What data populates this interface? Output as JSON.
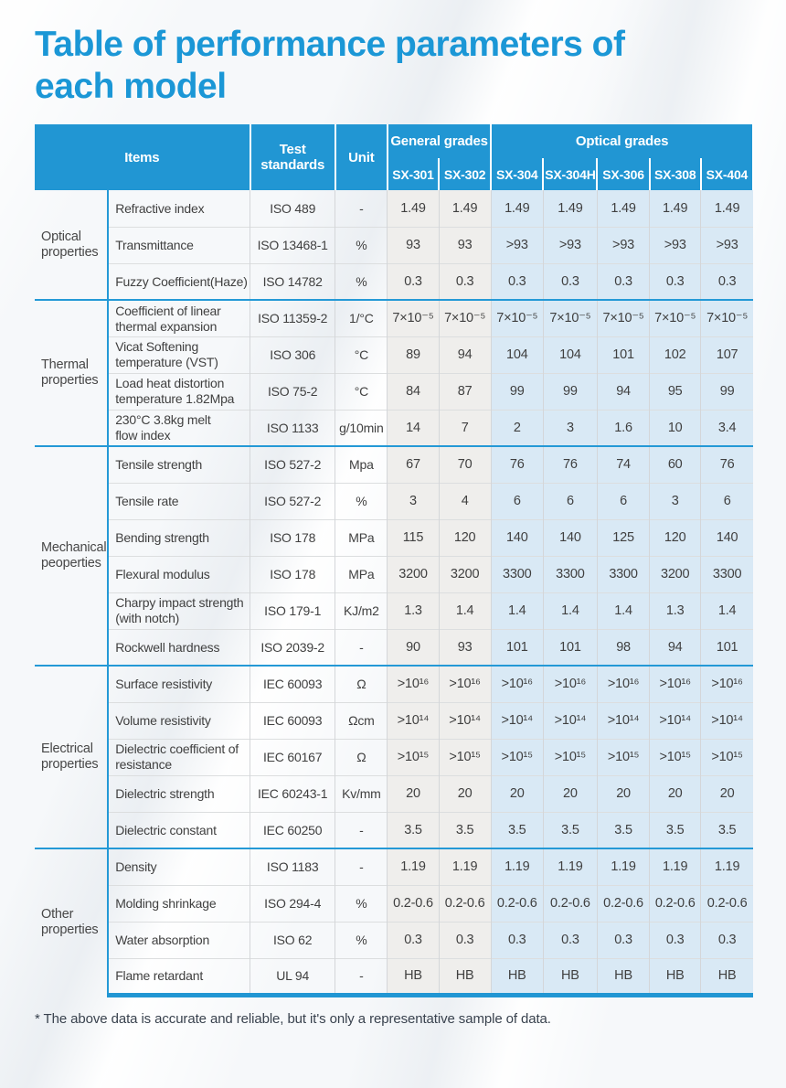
{
  "page": {
    "title": "Table of performance parameters of each model",
    "footnote": "* The above data is accurate and reliable, but it's only a representative sample of data."
  },
  "colors": {
    "header_blue": "#2196d3",
    "title_blue": "#1b97d6",
    "group_separator_blue": "#2499d6",
    "general_grades_bg": "#efeeec",
    "optical_grades_bg": "#d9e9f5",
    "body_text": "#404040"
  },
  "table": {
    "header": {
      "items": "Items",
      "test_standards": "Test\nstandards",
      "unit": "Unit",
      "general_grades": "General grades",
      "optical_grades": "Optical grades",
      "models": [
        "SX-301",
        "SX-302",
        "SX-304",
        "SX-304H",
        "SX-306",
        "SX-308",
        "SX-404"
      ]
    },
    "groups": [
      {
        "category": "Optical\nproperties",
        "rows": [
          {
            "item": "Refractive index",
            "standard": "ISO 489",
            "unit": "-",
            "values": [
              "1.49",
              "1.49",
              "1.49",
              "1.49",
              "1.49",
              "1.49",
              "1.49"
            ]
          },
          {
            "item": "Transmittance",
            "standard": "ISO 13468-1",
            "unit": "%",
            "values": [
              "93",
              "93",
              ">93",
              ">93",
              ">93",
              ">93",
              ">93"
            ]
          },
          {
            "item": "Fuzzy Coefficient(Haze)",
            "standard": "ISO 14782",
            "unit": "%",
            "values": [
              "0.3",
              "0.3",
              "0.3",
              "0.3",
              "0.3",
              "0.3",
              "0.3"
            ]
          }
        ]
      },
      {
        "category": "Thermal\nproperties",
        "rows": [
          {
            "item": "Coefficient of linear\nthermal expansion",
            "standard": "ISO 11359-2",
            "unit": "1/°C",
            "values": [
              "7×10⁻⁵",
              "7×10⁻⁵",
              "7×10⁻⁵",
              "7×10⁻⁵",
              "7×10⁻⁵",
              "7×10⁻⁵",
              "7×10⁻⁵"
            ]
          },
          {
            "item": "Vicat Softening\ntemperature (VST)",
            "standard": "ISO 306",
            "unit": "°C",
            "values": [
              "89",
              "94",
              "104",
              "104",
              "101",
              "102",
              "107"
            ]
          },
          {
            "item": "Load heat distortion\ntemperature 1.82Mpa",
            "standard": "ISO 75-2",
            "unit": "°C",
            "values": [
              "84",
              "87",
              "99",
              "99",
              "94",
              "95",
              "99"
            ]
          },
          {
            "item": "230°C 3.8kg melt\nflow index",
            "standard": "ISO 1133",
            "unit": "g/10min",
            "values": [
              "14",
              "7",
              "2",
              "3",
              "1.6",
              "10",
              "3.4"
            ]
          }
        ]
      },
      {
        "category": "Mechanical\npeoperties",
        "rows": [
          {
            "item": "Tensile strength",
            "standard": "ISO 527-2",
            "unit": "Mpa",
            "values": [
              "67",
              "70",
              "76",
              "76",
              "74",
              "60",
              "76"
            ]
          },
          {
            "item": "Tensile rate",
            "standard": "ISO 527-2",
            "unit": "%",
            "values": [
              "3",
              "4",
              "6",
              "6",
              "6",
              "3",
              "6"
            ]
          },
          {
            "item": "Bending strength",
            "standard": "ISO 178",
            "unit": "MPa",
            "values": [
              "115",
              "120",
              "140",
              "140",
              "125",
              "120",
              "140"
            ]
          },
          {
            "item": "Flexural modulus",
            "standard": "ISO 178",
            "unit": "MPa",
            "values": [
              "3200",
              "3200",
              "3300",
              "3300",
              "3300",
              "3200",
              "3300"
            ]
          },
          {
            "item": "Charpy impact strength\n(with notch)",
            "standard": "ISO 179-1",
            "unit": "KJ/m2",
            "values": [
              "1.3",
              "1.4",
              "1.4",
              "1.4",
              "1.4",
              "1.3",
              "1.4"
            ]
          },
          {
            "item": "Rockwell hardness",
            "standard": "ISO 2039-2",
            "unit": "-",
            "values": [
              "90",
              "93",
              "101",
              "101",
              "98",
              "94",
              "101"
            ]
          }
        ]
      },
      {
        "category": "Electrical\nproperties",
        "rows": [
          {
            "item": "Surface resistivity",
            "standard": "IEC 60093",
            "unit": "Ω",
            "values": [
              ">10¹⁶",
              ">10¹⁶",
              ">10¹⁶",
              ">10¹⁶",
              ">10¹⁶",
              ">10¹⁶",
              ">10¹⁶"
            ]
          },
          {
            "item": "Volume resistivity",
            "standard": "IEC 60093",
            "unit": "Ωcm",
            "values": [
              ">10¹⁴",
              ">10¹⁴",
              ">10¹⁴",
              ">10¹⁴",
              ">10¹⁴",
              ">10¹⁴",
              ">10¹⁴"
            ]
          },
          {
            "item": "Dielectric coefficient of\nresistance",
            "standard": "IEC 60167",
            "unit": "Ω",
            "values": [
              ">10¹⁵",
              ">10¹⁵",
              ">10¹⁵",
              ">10¹⁵",
              ">10¹⁵",
              ">10¹⁵",
              ">10¹⁵"
            ]
          },
          {
            "item": "Dielectric strength",
            "standard": "IEC 60243-1",
            "unit": "Kv/mm",
            "values": [
              "20",
              "20",
              "20",
              "20",
              "20",
              "20",
              "20"
            ]
          },
          {
            "item": "Dielectric constant",
            "standard": "IEC 60250",
            "unit": "-",
            "values": [
              "3.5",
              "3.5",
              "3.5",
              "3.5",
              "3.5",
              "3.5",
              "3.5"
            ]
          }
        ]
      },
      {
        "category": "Other\nproperties",
        "rows": [
          {
            "item": "Density",
            "standard": "ISO 1183",
            "unit": "-",
            "values": [
              "1.19",
              "1.19",
              "1.19",
              "1.19",
              "1.19",
              "1.19",
              "1.19"
            ]
          },
          {
            "item": "Molding shrinkage",
            "standard": "ISO 294-4",
            "unit": "%",
            "values": [
              "0.2-0.6",
              "0.2-0.6",
              "0.2-0.6",
              "0.2-0.6",
              "0.2-0.6",
              "0.2-0.6",
              "0.2-0.6"
            ]
          },
          {
            "item": "Water absorption",
            "standard": "ISO 62",
            "unit": "%",
            "values": [
              "0.3",
              "0.3",
              "0.3",
              "0.3",
              "0.3",
              "0.3",
              "0.3"
            ]
          },
          {
            "item": "Flame retardant",
            "standard": "UL 94",
            "unit": "-",
            "values": [
              "HB",
              "HB",
              "HB",
              "HB",
              "HB",
              "HB",
              "HB"
            ]
          }
        ]
      }
    ]
  }
}
